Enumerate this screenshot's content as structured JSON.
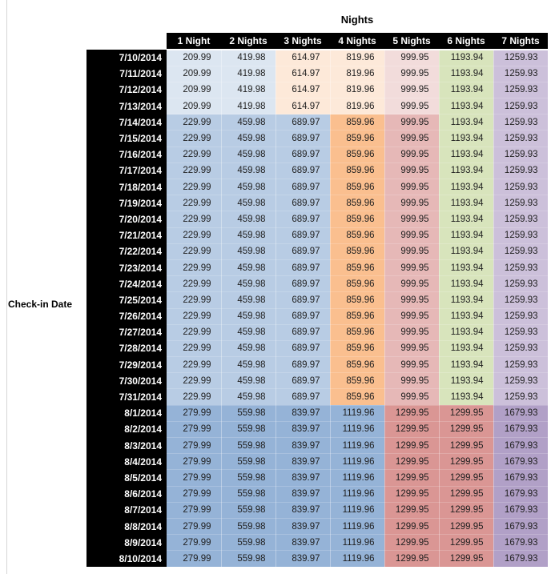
{
  "chart_data": {
    "type": "table",
    "title": "Nights",
    "row_axis_label": "Check-in Date",
    "columns": [
      "1 Night",
      "2 Nights",
      "3 Nights",
      "4 Nights",
      "5 Nights",
      "6 Nights",
      "7 Nights"
    ],
    "row_groups": [
      {
        "dates": [
          "7/10/2014",
          "7/11/2014",
          "7/12/2014",
          "7/13/2014"
        ],
        "values": [
          "209.99",
          "419.98",
          "614.97",
          "819.96",
          "999.95",
          "1193.94",
          "1259.93"
        ],
        "cell_colors": [
          "pale_blue",
          "pale_blue",
          "pale_orange",
          "pale_orange",
          "pale_pink",
          "green",
          "lavender"
        ]
      },
      {
        "dates": [
          "7/14/2014",
          "7/15/2014",
          "7/16/2014",
          "7/17/2014",
          "7/18/2014",
          "7/19/2014",
          "7/20/2014",
          "7/21/2014",
          "7/22/2014",
          "7/23/2014",
          "7/24/2014",
          "7/25/2014",
          "7/26/2014",
          "7/27/2014",
          "7/28/2014",
          "7/29/2014",
          "7/30/2014",
          "7/31/2014"
        ],
        "values": [
          "229.99",
          "459.98",
          "689.97",
          "859.96",
          "999.95",
          "1193.94",
          "1259.93"
        ],
        "cell_colors": [
          "light_blue",
          "light_blue",
          "light_blue",
          "orange",
          "rose",
          "green",
          "lavender"
        ]
      },
      {
        "dates": [
          "8/1/2014",
          "8/2/2014",
          "8/3/2014",
          "8/4/2014",
          "8/5/2014",
          "8/6/2014",
          "8/7/2014",
          "8/8/2014",
          "8/9/2014",
          "8/10/2014"
        ],
        "values": [
          "279.99",
          "559.98",
          "839.97",
          "1119.96",
          "1299.95",
          "1299.95",
          "1679.93"
        ],
        "cell_colors": [
          "medium_blue",
          "medium_blue",
          "medium_blue",
          "medium_blue",
          "red",
          "red",
          "purple"
        ]
      }
    ]
  },
  "palette": {
    "pale_blue": "#dce6f1",
    "light_blue": "#b8cce4",
    "medium_blue": "#95b3d7",
    "pale_orange": "#fde9d9",
    "orange": "#fabf8f",
    "pale_pink": "#f2dcdb",
    "rose": "#e6b8b7",
    "red": "#da9694",
    "green": "#d8e4bc",
    "lavender": "#ccc0da",
    "purple": "#b1a0c7",
    "header_bg": "#000000",
    "header_text": "#ffffff"
  }
}
